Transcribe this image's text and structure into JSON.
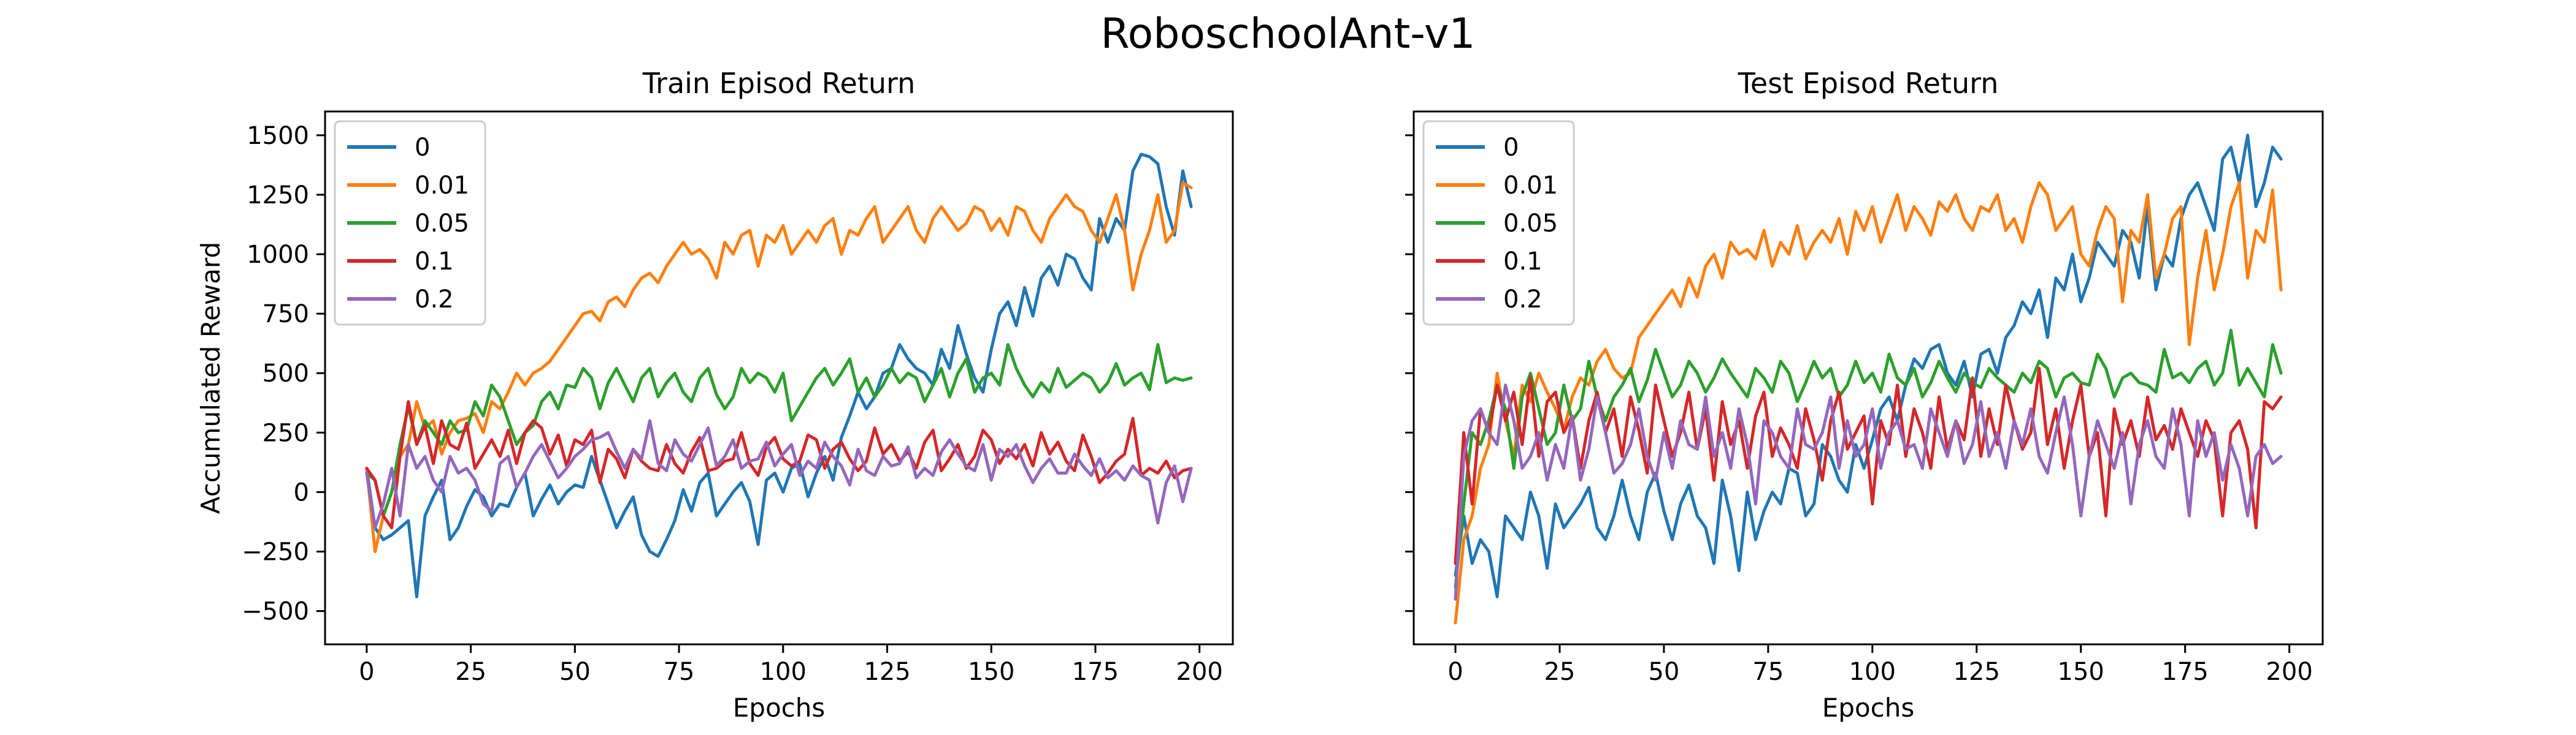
{
  "figure": {
    "suptitle": "RoboschoolAnt-v1"
  },
  "colors": [
    "#1f77b4",
    "#ff7f0e",
    "#2ca02c",
    "#d62728",
    "#9467bd"
  ],
  "chart_data": [
    {
      "type": "line",
      "title": "Train Episod Return",
      "xlabel": "Epochs",
      "ylabel": "Accumulated Reward",
      "xlim": [
        -10,
        208
      ],
      "ylim": [
        -640,
        1600
      ],
      "xticks": [
        0,
        25,
        50,
        75,
        100,
        125,
        150,
        175,
        200
      ],
      "yticks": [
        -500,
        -250,
        0,
        250,
        500,
        750,
        1000,
        1250,
        1500
      ],
      "ytick_labels": [
        "−500",
        "−250",
        "0",
        "250",
        "500",
        "750",
        "1000",
        "1250",
        "1500"
      ],
      "legend": "top-left",
      "grid": false,
      "x": "epochs 0..198, step 2",
      "series": [
        {
          "name": "0",
          "values": [
            100,
            -150,
            -200,
            -180,
            -150,
            -120,
            -440,
            -100,
            -20,
            50,
            -200,
            -150,
            -60,
            10,
            -20,
            -100,
            -50,
            -60,
            20,
            80,
            -100,
            -30,
            30,
            -50,
            0,
            30,
            20,
            150,
            50,
            -50,
            -150,
            -80,
            -20,
            -180,
            -250,
            -270,
            -200,
            -120,
            10,
            -80,
            40,
            80,
            -100,
            -50,
            0,
            40,
            -40,
            -220,
            50,
            80,
            0,
            100,
            120,
            -20,
            80,
            150,
            50,
            230,
            320,
            420,
            350,
            400,
            500,
            520,
            620,
            560,
            520,
            500,
            450,
            600,
            520,
            700,
            580,
            480,
            420,
            600,
            750,
            800,
            700,
            860,
            740,
            900,
            950,
            870,
            1000,
            980,
            900,
            850,
            1150,
            1050,
            1150,
            1100,
            1350,
            1420,
            1410,
            1380,
            1200,
            1080,
            1350,
            1200
          ]
        },
        {
          "name": "0.01",
          "values": [
            100,
            -250,
            -100,
            0,
            150,
            200,
            380,
            270,
            300,
            160,
            250,
            300,
            310,
            330,
            250,
            380,
            350,
            420,
            500,
            450,
            500,
            520,
            550,
            600,
            650,
            700,
            750,
            760,
            720,
            800,
            820,
            780,
            850,
            900,
            920,
            880,
            950,
            1000,
            1050,
            1000,
            1020,
            980,
            900,
            1050,
            1000,
            1080,
            1100,
            950,
            1080,
            1050,
            1120,
            1000,
            1050,
            1100,
            1050,
            1120,
            1150,
            1000,
            1100,
            1080,
            1150,
            1200,
            1050,
            1100,
            1150,
            1200,
            1100,
            1050,
            1150,
            1200,
            1150,
            1100,
            1130,
            1200,
            1180,
            1100,
            1150,
            1080,
            1200,
            1180,
            1100,
            1050,
            1150,
            1200,
            1250,
            1200,
            1180,
            1100,
            1050,
            1150,
            1250,
            1100,
            850,
            1000,
            1100,
            1250,
            1050,
            1100,
            1300,
            1280
          ]
        },
        {
          "name": "0.05",
          "values": [
            80,
            50,
            -100,
            0,
            200,
            360,
            200,
            300,
            250,
            200,
            300,
            250,
            260,
            380,
            320,
            450,
            400,
            300,
            200,
            250,
            280,
            380,
            420,
            350,
            450,
            440,
            520,
            480,
            350,
            460,
            520,
            450,
            380,
            480,
            520,
            400,
            460,
            500,
            420,
            380,
            480,
            520,
            410,
            350,
            400,
            520,
            460,
            500,
            480,
            420,
            500,
            300,
            360,
            420,
            480,
            520,
            450,
            500,
            560,
            420,
            480,
            400,
            450,
            520,
            460,
            500,
            480,
            380,
            450,
            520,
            400,
            500,
            560,
            420,
            480,
            500,
            450,
            620,
            520,
            450,
            400,
            460,
            420,
            520,
            440,
            470,
            500,
            480,
            420,
            460,
            540,
            450,
            480,
            500,
            430,
            620,
            460,
            480,
            470,
            480
          ]
        },
        {
          "name": "0.1",
          "values": [
            100,
            50,
            -100,
            -150,
            150,
            380,
            200,
            280,
            120,
            300,
            200,
            180,
            290,
            100,
            160,
            220,
            150,
            260,
            120,
            250,
            300,
            270,
            160,
            240,
            110,
            220,
            200,
            260,
            40,
            180,
            140,
            60,
            180,
            130,
            100,
            90,
            200,
            120,
            80,
            170,
            230,
            90,
            100,
            130,
            140,
            250,
            120,
            70,
            190,
            230,
            140,
            110,
            130,
            240,
            220,
            100,
            180,
            210,
            140,
            90,
            130,
            270,
            160,
            200,
            130,
            170,
            100,
            210,
            260,
            90,
            140,
            200,
            100,
            150,
            260,
            220,
            120,
            180,
            140,
            200,
            110,
            250,
            160,
            210,
            130,
            90,
            240,
            150,
            40,
            80,
            130,
            160,
            310,
            70,
            100,
            80,
            130,
            60,
            90,
            100
          ]
        },
        {
          "name": "0.2",
          "values": [
            80,
            -150,
            -50,
            100,
            -100,
            200,
            100,
            150,
            50,
            0,
            150,
            80,
            100,
            50,
            -50,
            -80,
            120,
            150,
            20,
            80,
            150,
            200,
            130,
            60,
            100,
            150,
            180,
            220,
            230,
            250,
            170,
            100,
            180,
            140,
            300,
            120,
            90,
            220,
            160,
            130,
            200,
            270,
            110,
            150,
            220,
            100,
            130,
            140,
            210,
            110,
            160,
            200,
            70,
            130,
            100,
            210,
            150,
            110,
            30,
            180,
            90,
            70,
            150,
            110,
            120,
            190,
            60,
            100,
            70,
            170,
            220,
            160,
            110,
            90,
            200,
            50,
            180,
            150,
            200,
            110,
            40,
            100,
            140,
            80,
            80,
            160,
            110,
            70,
            140,
            60,
            90,
            50,
            110,
            70,
            50,
            -130,
            40,
            110,
            -40,
            100
          ]
        }
      ]
    },
    {
      "type": "line",
      "title": "Test Episod Return",
      "xlabel": "Epochs",
      "ylabel": "",
      "xlim": [
        -10,
        208
      ],
      "ylim": [
        -640,
        1600
      ],
      "xticks": [
        0,
        25,
        50,
        75,
        100,
        125,
        150,
        175,
        200
      ],
      "yticks": [
        -500,
        -250,
        0,
        250,
        500,
        750,
        1000,
        1250,
        1500
      ],
      "ytick_labels": [
        "",
        "",
        "",
        "",
        "",
        "",
        "",
        "",
        ""
      ],
      "legend": "top-left",
      "grid": false,
      "x": "epochs 0..198, step 2",
      "series": [
        {
          "name": "0",
          "values": [
            -350,
            -100,
            -300,
            -200,
            -250,
            -440,
            -100,
            -150,
            -200,
            0,
            -100,
            -320,
            -50,
            -150,
            -100,
            -50,
            20,
            -150,
            -200,
            -100,
            50,
            -100,
            -200,
            0,
            80,
            -80,
            -200,
            -50,
            30,
            -100,
            -150,
            -300,
            50,
            -100,
            -330,
            0,
            -200,
            -80,
            0,
            -50,
            100,
            80,
            -100,
            -50,
            200,
            150,
            50,
            0,
            200,
            100,
            220,
            350,
            400,
            300,
            450,
            560,
            520,
            600,
            620,
            500,
            450,
            550,
            400,
            580,
            600,
            500,
            650,
            700,
            800,
            750,
            850,
            650,
            900,
            850,
            1000,
            800,
            900,
            1050,
            1000,
            950,
            1100,
            1050,
            900,
            1200,
            850,
            1000,
            950,
            1150,
            1250,
            1300,
            1200,
            1100,
            1400,
            1450,
            1300,
            1500,
            1200,
            1300,
            1450,
            1400
          ]
        },
        {
          "name": "0.01",
          "values": [
            -550,
            -200,
            -100,
            100,
            200,
            500,
            300,
            150,
            450,
            380,
            500,
            420,
            350,
            260,
            400,
            480,
            450,
            550,
            600,
            520,
            480,
            500,
            650,
            700,
            750,
            800,
            850,
            780,
            900,
            820,
            950,
            1000,
            900,
            1050,
            1000,
            1020,
            980,
            1100,
            950,
            1050,
            1000,
            1120,
            980,
            1050,
            1100,
            1050,
            1150,
            1000,
            1180,
            1100,
            1200,
            1050,
            1150,
            1250,
            1100,
            1200,
            1150,
            1080,
            1220,
            1180,
            1250,
            1150,
            1100,
            1200,
            1180,
            1250,
            1100,
            1150,
            1050,
            1200,
            1300,
            1250,
            1100,
            1150,
            1200,
            1000,
            950,
            1100,
            1200,
            1150,
            800,
            1100,
            1050,
            1250,
            900,
            1000,
            1150,
            1200,
            620,
            900,
            1100,
            850,
            1000,
            1200,
            1300,
            900,
            1100,
            1050,
            1270,
            850
          ]
        },
        {
          "name": "0.05",
          "values": [
            -400,
            -50,
            250,
            200,
            300,
            450,
            350,
            100,
            400,
            500,
            350,
            200,
            250,
            450,
            300,
            350,
            550,
            400,
            300,
            400,
            450,
            520,
            380,
            470,
            600,
            500,
            400,
            450,
            550,
            500,
            420,
            480,
            560,
            500,
            450,
            400,
            520,
            480,
            420,
            550,
            500,
            380,
            460,
            550,
            480,
            520,
            400,
            450,
            550,
            460,
            500,
            420,
            580,
            480,
            450,
            520,
            400,
            460,
            550,
            480,
            420,
            500,
            460,
            440,
            520,
            480,
            450,
            420,
            500,
            460,
            550,
            520,
            400,
            480,
            500,
            460,
            450,
            580,
            520,
            400,
            480,
            500,
            460,
            450,
            420,
            600,
            480,
            500,
            460,
            520,
            550,
            450,
            500,
            680,
            450,
            520,
            460,
            400,
            620,
            500
          ]
        },
        {
          "name": "0.1",
          "values": [
            -300,
            250,
            -50,
            350,
            250,
            450,
            300,
            420,
            200,
            480,
            150,
            380,
            420,
            250,
            320,
            100,
            300,
            420,
            250,
            350,
            150,
            400,
            260,
            80,
            450,
            300,
            150,
            250,
            420,
            180,
            350,
            50,
            380,
            200,
            300,
            100,
            320,
            420,
            150,
            270,
            200,
            100,
            350,
            220,
            50,
            300,
            420,
            180,
            250,
            320,
            -50,
            300,
            200,
            450,
            150,
            350,
            250,
            100,
            400,
            180,
            300,
            220,
            480,
            150,
            350,
            200,
            450,
            300,
            180,
            250,
            520,
            200,
            350,
            100,
            300,
            450,
            150,
            250,
            -100,
            350,
            200,
            300,
            150,
            400,
            220,
            280,
            180,
            350,
            250,
            150,
            300,
            220,
            -100,
            250,
            300,
            180,
            -150,
            380,
            350,
            400
          ]
        },
        {
          "name": "0.2",
          "values": [
            -450,
            150,
            300,
            350,
            250,
            200,
            450,
            300,
            100,
            150,
            250,
            50,
            200,
            100,
            320,
            50,
            180,
            400,
            250,
            80,
            120,
            200,
            350,
            150,
            50,
            250,
            100,
            300,
            200,
            180,
            400,
            150,
            250,
            100,
            350,
            200,
            -50,
            300,
            250,
            150,
            100,
            350,
            200,
            180,
            250,
            400,
            100,
            300,
            150,
            200,
            350,
            100,
            250,
            300,
            180,
            200,
            100,
            350,
            250,
            150,
            300,
            120,
            200,
            380,
            150,
            250,
            100,
            300,
            200,
            350,
            150,
            80,
            250,
            400,
            200,
            -100,
            150,
            300,
            200,
            100,
            250,
            -50,
            200,
            300,
            150,
            100,
            350,
            200,
            -100,
            300,
            150,
            250,
            50,
            200,
            100,
            -100,
            150,
            200,
            120,
            150
          ]
        }
      ]
    }
  ]
}
